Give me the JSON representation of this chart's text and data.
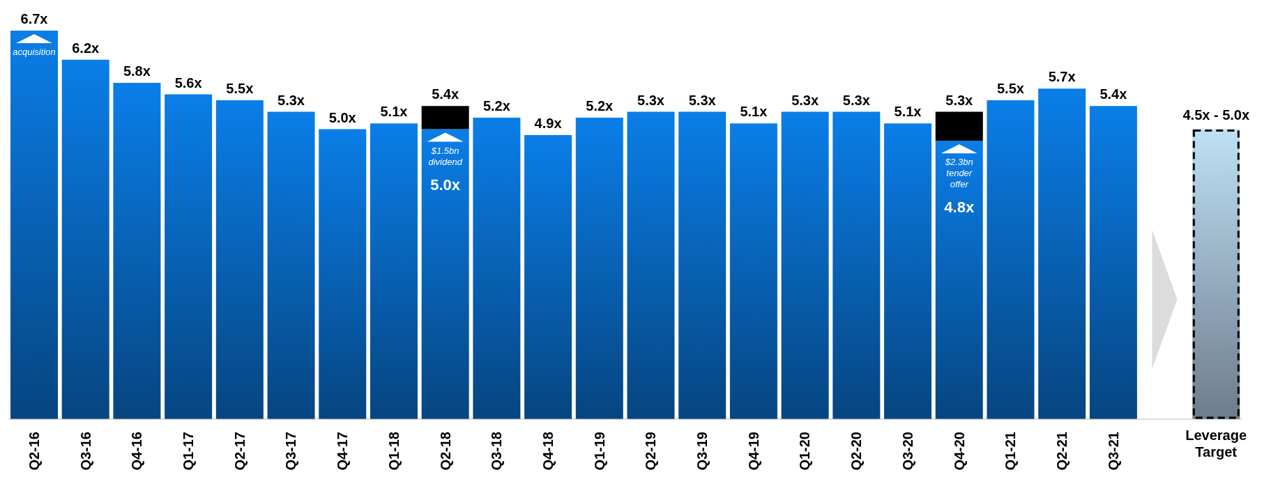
{
  "chart_data": {
    "type": "bar",
    "stacked": true,
    "legend": false,
    "grid": false,
    "categories": [
      "Q2-16",
      "Q3-16",
      "Q4-16",
      "Q1-17",
      "Q2-17",
      "Q3-17",
      "Q4-17",
      "Q1-18",
      "Q2-18",
      "Q3-18",
      "Q4-18",
      "Q1-19",
      "Q2-19",
      "Q3-19",
      "Q4-19",
      "Q1-20",
      "Q2-20",
      "Q3-20",
      "Q4-20",
      "Q1-21",
      "Q2-21",
      "Q3-21",
      null,
      "Leverage Target"
    ],
    "series": [
      {
        "color": "#0a7ee8",
        "values": [
          6.7,
          6.2,
          5.8,
          5.6,
          5.5,
          5.3,
          5.0,
          5.1,
          5.0,
          5.2,
          4.9,
          5.2,
          5.3,
          5.3,
          5.1,
          5.3,
          5.3,
          5.1,
          4.8,
          5.5,
          5.7,
          5.4,
          null,
          null
        ],
        "value_labels": [
          "6.7x",
          "6.2x",
          "5.8x",
          "5.6x",
          "5.5x",
          "5.3x",
          "5.0x",
          "5.1x",
          "5.0x",
          "5.2x",
          "4.9x",
          "5.2x",
          "5.3x",
          "5.3x",
          "5.1x",
          "5.3x",
          "5.3x",
          "5.1x",
          "4.8x",
          "5.5x",
          "5.7x",
          "5.4x",
          null,
          null
        ]
      },
      {
        "color": "#000000",
        "values": [
          null,
          null,
          null,
          null,
          null,
          null,
          null,
          null,
          0.4,
          null,
          null,
          null,
          null,
          null,
          null,
          null,
          null,
          null,
          0.5,
          null,
          null,
          null,
          null,
          null
        ]
      },
      {
        "color": "#bfe0f5",
        "line_style": "dashed",
        "values": [
          null,
          null,
          null,
          null,
          null,
          null,
          null,
          null,
          null,
          null,
          null,
          null,
          null,
          null,
          null,
          null,
          null,
          null,
          null,
          null,
          null,
          null,
          null,
          5.0
        ]
      }
    ],
    "totals": [
      null,
      null,
      null,
      null,
      null,
      null,
      null,
      null,
      "5.4x",
      null,
      null,
      null,
      null,
      null,
      null,
      null,
      null,
      null,
      "5.3x",
      null,
      null,
      null,
      null,
      null
    ],
    "annotations": [
      "acquisition",
      "$1.5bn dividend",
      "$2.3bn tender offer",
      "4.5x - 5.0x"
    ]
  }
}
